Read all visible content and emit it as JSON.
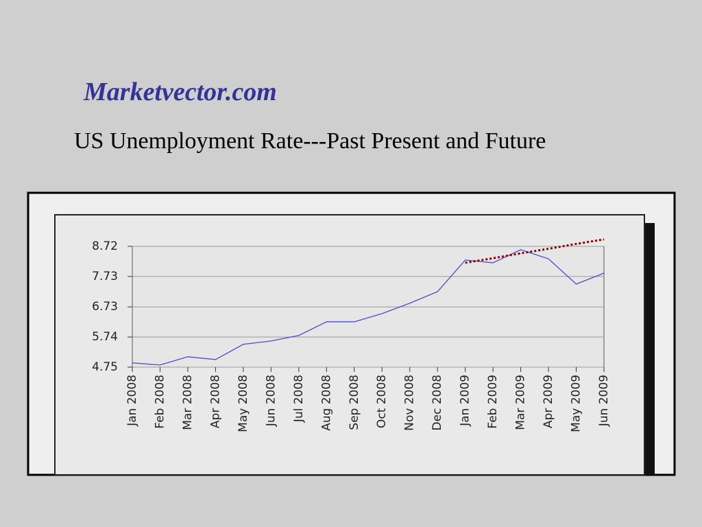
{
  "header": {
    "site": "Marketvector.com"
  },
  "chart_data": {
    "type": "line",
    "title": "US Unemployment Rate---Past Present and Future",
    "categories": [
      "Jan 2008",
      "Feb 2008",
      "Mar 2008",
      "Apr 2008",
      "May 2008",
      "Jun 2008",
      "Jul 2008",
      "Aug 2008",
      "Sep 2008",
      "Oct 2008",
      "Nov 2008",
      "Dec 2008",
      "Jan 2009",
      "Feb 2009",
      "Mar 2009",
      "Apr 2009",
      "May 2009",
      "Jun 2009"
    ],
    "series": [
      {
        "color": "#4a4ae0",
        "style": "solid",
        "values": [
          4.89,
          4.82,
          5.09,
          5.0,
          5.5,
          5.61,
          5.79,
          6.24,
          6.24,
          6.51,
          6.85,
          7.23,
          8.27,
          8.18,
          8.61,
          8.31,
          7.48,
          7.84
        ]
      },
      {
        "color": "#8b0000",
        "style": "dotted",
        "values": [
          null,
          null,
          null,
          null,
          null,
          null,
          null,
          null,
          null,
          null,
          null,
          null,
          8.18,
          8.33,
          8.49,
          8.64,
          8.8,
          8.95
        ]
      }
    ],
    "ylim": [
      4.75,
      8.72
    ],
    "yticks": [
      4.75,
      5.74,
      6.73,
      7.73,
      8.72
    ],
    "grid": true
  }
}
